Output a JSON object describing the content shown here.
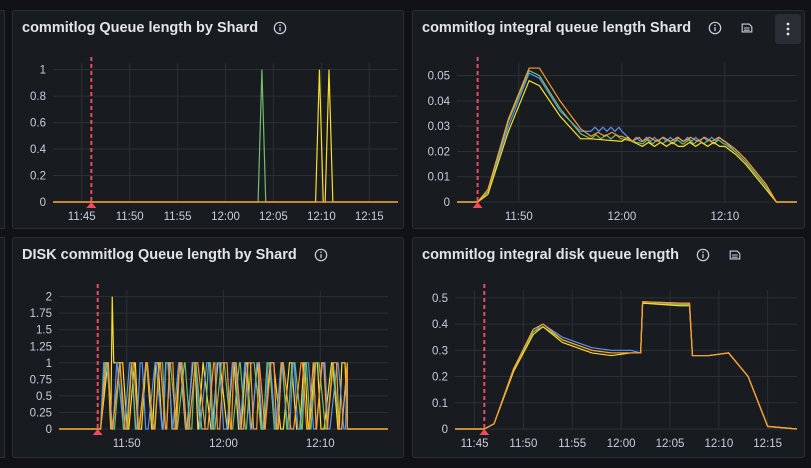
{
  "panels": [
    {
      "id": "p1",
      "title": "commitlog Queue length by Shard",
      "icons": [
        "info-icon"
      ],
      "has_menu": false,
      "chart_data": {
        "type": "line",
        "title": "commitlog Queue length by Shard",
        "x_is_time": true,
        "xlim": [
          "11:42",
          "12:18"
        ],
        "ylim": [
          0,
          1.05
        ],
        "x_ticks": [
          "11:45",
          "11:50",
          "11:55",
          "12:00",
          "12:05",
          "12:10",
          "12:15"
        ],
        "y_ticks": [
          0,
          0.2,
          0.4,
          0.6,
          0.8,
          1
        ],
        "y_tick_labels": [
          "0",
          "0.2",
          "0.4",
          "0.6",
          "0.8",
          "1"
        ],
        "marker": "11:46",
        "grid": true,
        "series": [
          {
            "color": "#73bf69",
            "x": [
              "11:42",
              "12:03.4",
              "12:03.8",
              "12:04.2",
              "12:18"
            ],
            "y": [
              0,
              0,
              1,
              0,
              0
            ]
          },
          {
            "color": "#fade2a",
            "x": [
              "11:42",
              "12:09.4",
              "12:09.8",
              "12:10.2",
              "12:10.4",
              "12:10.8",
              "12:11.2",
              "12:18"
            ],
            "y": [
              0,
              0,
              1,
              0,
              0,
              1,
              0,
              0
            ]
          },
          {
            "color": "#ff9830",
            "x": [
              "11:42",
              "12:18"
            ],
            "y": [
              0,
              0
            ]
          }
        ]
      }
    },
    {
      "id": "p2",
      "title": "commitlog integral queue length Shard",
      "icons": [
        "info-icon",
        "notes-icon"
      ],
      "has_menu": true,
      "chart_data": {
        "type": "line",
        "title": "commitlog integral queue length Shard",
        "x_is_time": true,
        "xlim": [
          "11:44",
          "12:17"
        ],
        "ylim": [
          0,
          0.055
        ],
        "x_ticks": [
          "11:50",
          "12:00",
          "12:10"
        ],
        "y_ticks": [
          0,
          0.01,
          0.02,
          0.03,
          0.04,
          0.05
        ],
        "y_tick_labels": [
          "0",
          "0.01",
          "0.02",
          "0.03",
          "0.04",
          "0.05"
        ],
        "marker": "11:46",
        "grid": true,
        "series": [
          {
            "color": "#5794f2",
            "x": [
              "11:44",
              "11:46",
              "11:47",
              "11:49",
              "11:51",
              "11:52",
              "11:54",
              "11:56",
              "11:57",
              "12:00",
              "12:01",
              "12:02",
              "12:06",
              "12:10",
              "12:11",
              "12:12",
              "12:14",
              "12:15",
              "12:17"
            ],
            "y": [
              0,
              0,
              0.004,
              0.03,
              0.051,
              0.049,
              0.036,
              0.028,
              0.028,
              0.028,
              0.024,
              0.024,
              0.024,
              0.024,
              0.02,
              0.016,
              0.006,
              0,
              0
            ]
          },
          {
            "color": "#73bf69",
            "x": [
              "11:44",
              "11:46",
              "11:47",
              "11:49",
              "11:51",
              "11:52",
              "11:54",
              "11:56",
              "11:57",
              "12:00",
              "12:01",
              "12:02",
              "12:06",
              "12:10",
              "12:11",
              "12:12",
              "12:14",
              "12:15",
              "12:17"
            ],
            "y": [
              0,
              0,
              0.004,
              0.032,
              0.052,
              0.05,
              0.037,
              0.027,
              0.025,
              0.025,
              0.024,
              0.023,
              0.023,
              0.023,
              0.02,
              0.016,
              0.006,
              0,
              0
            ]
          },
          {
            "color": "#fade2a",
            "x": [
              "11:44",
              "11:46",
              "11:47",
              "11:49",
              "11:51",
              "11:52",
              "11:54",
              "11:56",
              "11:57",
              "12:00",
              "12:01",
              "12:02",
              "12:06",
              "12:10",
              "12:11",
              "12:12",
              "12:14",
              "12:15",
              "12:17"
            ],
            "y": [
              0,
              0,
              0.003,
              0.028,
              0.048,
              0.046,
              0.034,
              0.025,
              0.025,
              0.024,
              0.024,
              0.022,
              0.022,
              0.022,
              0.019,
              0.015,
              0.005,
              0,
              0
            ]
          },
          {
            "color": "#ff9830",
            "x": [
              "11:44",
              "11:46",
              "11:47",
              "11:49",
              "11:51",
              "11:52",
              "11:54",
              "11:56",
              "11:57",
              "12:00",
              "12:01",
              "12:02",
              "12:06",
              "12:10",
              "12:11",
              "12:12",
              "12:14",
              "12:15",
              "12:17"
            ],
            "y": [
              0,
              0,
              0.005,
              0.033,
              0.053,
              0.053,
              0.04,
              0.029,
              0.026,
              0.026,
              0.024,
              0.024,
              0.024,
              0.024,
              0.021,
              0.017,
              0.007,
              0,
              0
            ]
          }
        ]
      }
    },
    {
      "id": "p3",
      "title": "DISK commitlog Queue length by Shard",
      "icons": [
        "info-icon"
      ],
      "has_menu": false,
      "chart_data": {
        "type": "line",
        "title": "DISK commitlog Queue length by Shard",
        "x_is_time": true,
        "xlim": [
          "11:43",
          "12:17"
        ],
        "ylim": [
          0,
          2.1
        ],
        "x_ticks": [
          "11:50",
          "12:00",
          "12:10"
        ],
        "y_ticks": [
          0,
          0.25,
          0.5,
          0.75,
          1,
          1.25,
          1.5,
          1.75,
          2
        ],
        "y_tick_labels": [
          "0",
          "0.25",
          "0.5",
          "0.75",
          "1",
          "1.25",
          "1.5",
          "1.75",
          "2"
        ],
        "marker": "11:47",
        "grid": true,
        "oscillation": {
          "start": "11:47.3",
          "end": "12:12.8",
          "min": 0,
          "max": 1,
          "spike_x": "11:48.5",
          "spike_y": 2
        },
        "series": [
          {
            "color": "#fade2a"
          },
          {
            "color": "#5794f2"
          },
          {
            "color": "#73bf69"
          },
          {
            "color": "#ff9830"
          }
        ]
      }
    },
    {
      "id": "p4",
      "title": "commitlog integral disk queue length",
      "icons": [
        "info-icon",
        "notes-icon"
      ],
      "has_menu": false,
      "chart_data": {
        "type": "line",
        "title": "commitlog integral disk queue length",
        "x_is_time": true,
        "xlim": [
          "11:43",
          "12:18"
        ],
        "ylim": [
          0,
          0.53
        ],
        "x_ticks": [
          "11:45",
          "11:50",
          "11:55",
          "12:00",
          "12:05",
          "12:10",
          "12:15"
        ],
        "y_ticks": [
          0,
          0.1,
          0.2,
          0.3,
          0.4,
          0.5
        ],
        "y_tick_labels": [
          "0",
          "0.1",
          "0.2",
          "0.3",
          "0.4",
          "0.5"
        ],
        "marker": "11:46",
        "grid": true,
        "series": [
          {
            "color": "#5794f2",
            "x": [
              "11:43",
              "11:46",
              "11:47",
              "11:49",
              "11:51",
              "11:52",
              "11:54",
              "11:57",
              "11:59",
              "12:01",
              "12:02",
              "12:02.2",
              "12:06",
              "12:07",
              "12:07.3",
              "12:09",
              "12:11",
              "12:13",
              "12:15",
              "12:18"
            ],
            "y": [
              0,
              0,
              0.02,
              0.23,
              0.37,
              0.4,
              0.35,
              0.31,
              0.3,
              0.3,
              0.29,
              0.485,
              0.48,
              0.48,
              0.28,
              0.28,
              0.29,
              0.2,
              0.01,
              0
            ]
          },
          {
            "color": "#73bf69",
            "x": [
              "11:43",
              "11:46",
              "11:47",
              "11:49",
              "11:51",
              "11:52",
              "11:54",
              "11:57",
              "11:59",
              "12:01",
              "12:02",
              "12:02.2",
              "12:06",
              "12:07",
              "12:07.3",
              "12:09",
              "12:11",
              "12:13",
              "12:15",
              "12:18"
            ],
            "y": [
              0,
              0,
              0.02,
              0.23,
              0.37,
              0.39,
              0.34,
              0.3,
              0.29,
              0.29,
              0.29,
              0.48,
              0.475,
              0.475,
              0.28,
              0.28,
              0.29,
              0.2,
              0.01,
              0
            ]
          },
          {
            "color": "#fade2a",
            "x": [
              "11:43",
              "11:46",
              "11:47",
              "11:49",
              "11:51",
              "11:52",
              "11:54",
              "11:57",
              "11:59",
              "12:01",
              "12:02",
              "12:02.2",
              "12:06",
              "12:07",
              "12:07.3",
              "12:09",
              "12:11",
              "12:13",
              "12:15",
              "12:18"
            ],
            "y": [
              0,
              0,
              0.02,
              0.22,
              0.36,
              0.39,
              0.33,
              0.29,
              0.28,
              0.29,
              0.29,
              0.48,
              0.47,
              0.47,
              0.28,
              0.28,
              0.29,
              0.2,
              0.01,
              0
            ]
          },
          {
            "color": "#ff9830",
            "x": [
              "11:43",
              "11:46",
              "11:47",
              "11:49",
              "11:51",
              "11:52",
              "11:54",
              "11:57",
              "11:59",
              "12:01",
              "12:02",
              "12:02.2",
              "12:06",
              "12:07",
              "12:07.3",
              "12:09",
              "12:11",
              "12:13",
              "12:15",
              "12:18"
            ],
            "y": [
              0,
              0,
              0.02,
              0.23,
              0.38,
              0.4,
              0.34,
              0.3,
              0.29,
              0.29,
              0.29,
              0.485,
              0.48,
              0.48,
              0.28,
              0.28,
              0.29,
              0.2,
              0.01,
              0
            ]
          }
        ]
      }
    }
  ]
}
